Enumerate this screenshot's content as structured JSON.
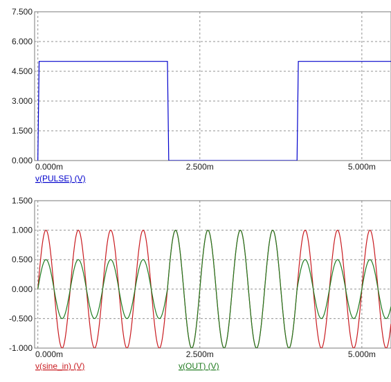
{
  "chart_data": [
    {
      "type": "line",
      "title": "",
      "xlabel": "",
      "ylabel": "",
      "x_unit": "ms",
      "xlim": [
        -0.05,
        5.45
      ],
      "ylim": [
        0,
        7.5
      ],
      "x_ticks": [
        {
          "value": 0,
          "label": "0.000m"
        },
        {
          "value": 2.5,
          "label": "2.500m"
        },
        {
          "value": 5,
          "label": "5.000m"
        }
      ],
      "y_ticks": [
        {
          "value": 0,
          "label": "0.000"
        },
        {
          "value": 1.5,
          "label": "1.500"
        },
        {
          "value": 3,
          "label": "3.000"
        },
        {
          "value": 4.5,
          "label": "4.500"
        },
        {
          "value": 6,
          "label": "6.000"
        },
        {
          "value": 7.5,
          "label": "7.500"
        }
      ],
      "grid": true,
      "legend": "bottom-left",
      "series": [
        {
          "name": "v(PULSE) (V)",
          "color": "#0000cc",
          "x": [
            0,
            0.02,
            2,
            2.02,
            4,
            4.02,
            5.45
          ],
          "y": [
            0,
            5,
            5,
            0,
            0,
            5,
            5
          ]
        }
      ]
    },
    {
      "type": "line",
      "title": "",
      "xlabel": "",
      "ylabel": "",
      "x_unit": "ms",
      "xlim": [
        -0.05,
        5.45
      ],
      "ylim": [
        -1,
        1.5
      ],
      "x_ticks": [
        {
          "value": 0,
          "label": "0.000m"
        },
        {
          "value": 2.5,
          "label": "2.500m"
        },
        {
          "value": 5,
          "label": "5.000m"
        }
      ],
      "y_ticks": [
        {
          "value": -1,
          "label": "-1.000"
        },
        {
          "value": -0.5,
          "label": "-0.500"
        },
        {
          "value": 0,
          "label": "0.000"
        },
        {
          "value": 0.5,
          "label": "0.500"
        },
        {
          "value": 1,
          "label": "1.000"
        },
        {
          "value": 1.5,
          "label": "1.500"
        }
      ],
      "grid": true,
      "legend": "bottom",
      "series": [
        {
          "name": "v(sine_in) (V)",
          "color": "#c8191e",
          "function": "sine",
          "amplitude": 1,
          "frequency_khz": 2,
          "x_range": [
            0,
            5.45
          ]
        },
        {
          "name": "v(OUT) (V)",
          "color": "#1e7a1e",
          "function": "sine",
          "frequency_khz": 2,
          "x_range": [
            0,
            5.45
          ],
          "amplitude_segments": [
            {
              "from": 0,
              "to": 2,
              "amplitude": 0.5
            },
            {
              "from": 2,
              "to": 4,
              "amplitude": 1
            },
            {
              "from": 4,
              "to": 5.45,
              "amplitude": 0.5
            }
          ]
        }
      ]
    }
  ]
}
